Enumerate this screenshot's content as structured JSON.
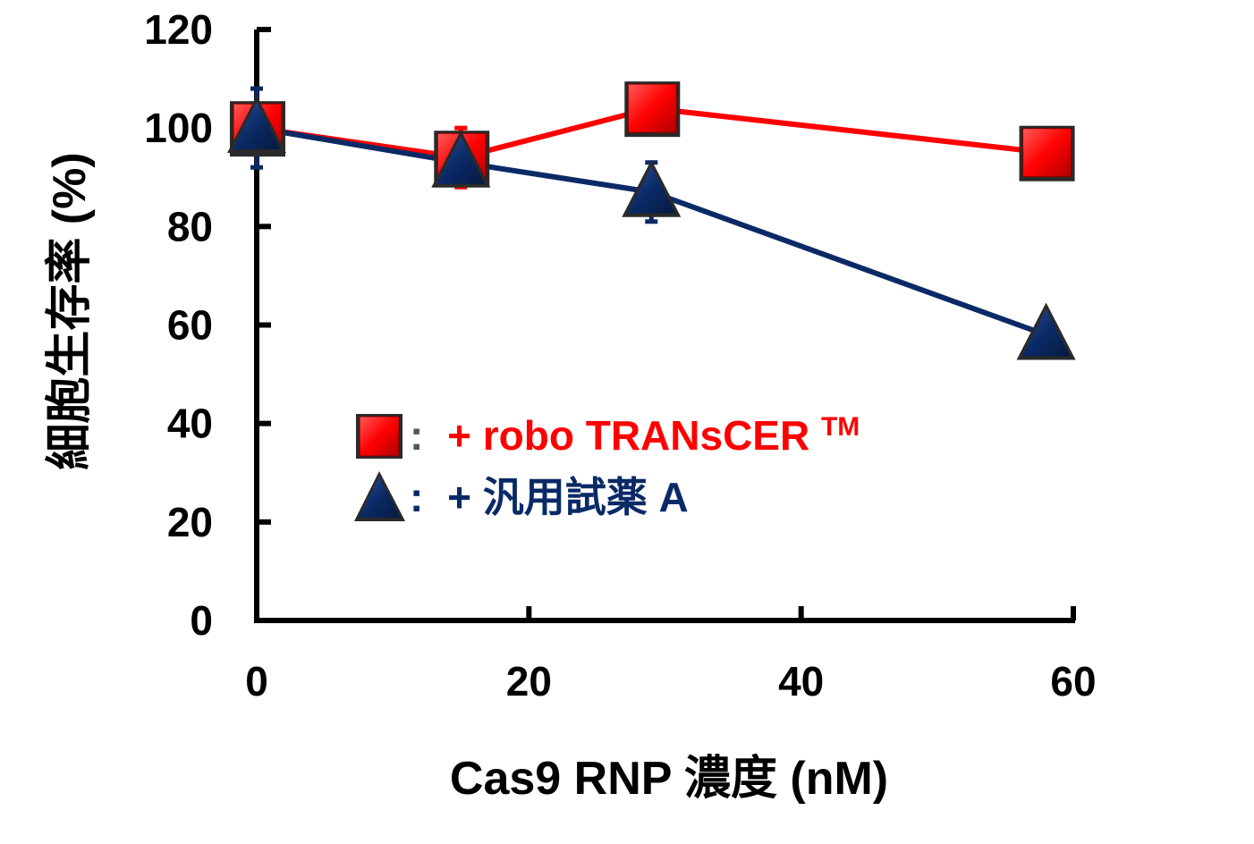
{
  "chart_data": {
    "type": "line",
    "xlabel": "Cas9 RNP 濃度 (nM)",
    "ylabel": "細胞生存率 (%)",
    "xlim": [
      0,
      60
    ],
    "ylim": [
      0,
      120
    ],
    "x_ticks": [
      "0",
      "20",
      "40",
      "60"
    ],
    "y_ticks": [
      "0",
      "20",
      "40",
      "60",
      "80",
      "100",
      "120"
    ],
    "grid": false,
    "legend_position": "center-left",
    "series": [
      {
        "name": "+ robo TRANsCER",
        "name_superscript": "TM",
        "marker": "square",
        "color": "#ff0000",
        "line_color": "#ff0000",
        "x": [
          0,
          15,
          29,
          58
        ],
        "y": [
          100,
          94,
          104,
          95
        ],
        "error": [
          2,
          6,
          3,
          2
        ]
      },
      {
        "name": "+ 汎用試薬 A",
        "marker": "triangle",
        "color": "#0a2a66",
        "line_color": "#0a2a66",
        "x": [
          0,
          15,
          29,
          58
        ],
        "y": [
          100,
          93,
          87,
          58
        ],
        "error": [
          8,
          3,
          6,
          3
        ]
      }
    ],
    "legend": {
      "separator": ":"
    }
  }
}
